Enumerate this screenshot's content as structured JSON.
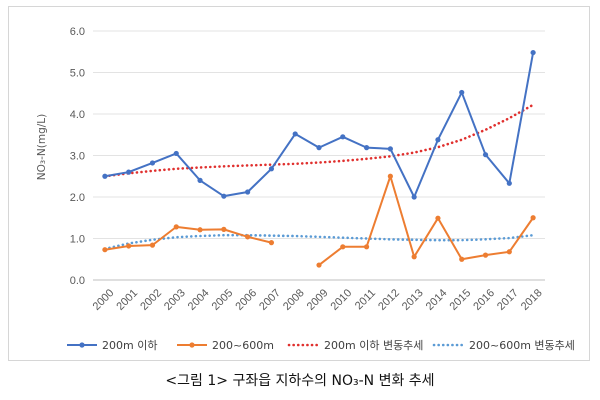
{
  "caption": {
    "text": "<그림 1> 구좌읍 지하수의 NO₃-N 변화 추세"
  },
  "chart_data": {
    "type": "line",
    "title": "",
    "xlabel": "",
    "ylabel": "NO₃-N(mg/L)",
    "ylim": [
      0,
      6
    ],
    "yticks": [
      "0.0",
      "1.0",
      "2.0",
      "3.0",
      "4.0",
      "5.0",
      "6.0"
    ],
    "grid": true,
    "legend_position": "bottom",
    "categories": [
      "2000",
      "2001",
      "2002",
      "2003",
      "2004",
      "2005",
      "2006",
      "2007",
      "2008",
      "2009",
      "2010",
      "2011",
      "2012",
      "2013",
      "2014",
      "2015",
      "2016",
      "2017",
      "2018"
    ],
    "series": [
      {
        "name": "200m 이하",
        "color": "#4472c4",
        "style": "solid-marker",
        "values": [
          2.5,
          2.6,
          2.82,
          3.05,
          2.4,
          2.02,
          2.12,
          2.68,
          3.52,
          3.19,
          3.45,
          3.19,
          3.16,
          2.0,
          3.38,
          4.52,
          3.02,
          2.33,
          5.48
        ]
      },
      {
        "name": "200~600m",
        "color": "#ed7d31",
        "style": "solid-marker",
        "values": [
          0.73,
          0.82,
          0.84,
          1.28,
          1.21,
          1.22,
          1.04,
          0.9,
          null,
          0.36,
          0.8,
          0.8,
          2.5,
          0.56,
          1.49,
          0.5,
          0.6,
          0.68,
          1.5
        ]
      },
      {
        "name": "200m 이하 변동추세",
        "color": "#e0302e",
        "style": "dotted-trend",
        "values": [
          2.5,
          2.57,
          2.63,
          2.68,
          2.71,
          2.74,
          2.76,
          2.78,
          2.8,
          2.83,
          2.87,
          2.92,
          2.98,
          3.07,
          3.2,
          3.38,
          3.62,
          3.9,
          4.22
        ]
      },
      {
        "name": "200~600m 변동추세",
        "color": "#5b9bd5",
        "style": "dotted-trend",
        "values": [
          0.75,
          0.88,
          0.97,
          1.03,
          1.06,
          1.08,
          1.08,
          1.07,
          1.06,
          1.04,
          1.02,
          1.0,
          0.98,
          0.97,
          0.96,
          0.96,
          0.98,
          1.01,
          1.08
        ]
      }
    ]
  }
}
